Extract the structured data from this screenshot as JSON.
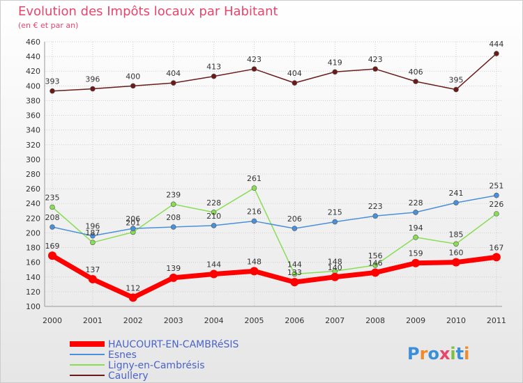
{
  "chart_data": {
    "type": "line",
    "title": "Evolution des Impôts locaux par Habitant",
    "subtitle": "(en € et par an)",
    "xlabel": "",
    "ylabel": "",
    "ylim": [
      100,
      460
    ],
    "ytick_step": 20,
    "grid": true,
    "categories": [
      "2000",
      "2001",
      "2002",
      "2003",
      "2004",
      "2005",
      "2006",
      "2007",
      "2008",
      "2009",
      "2010",
      "2011"
    ],
    "series": [
      {
        "name": "HAUCOURT-EN-CAMBRéSIS",
        "color": "#ff0000",
        "values": [
          169,
          137,
          112,
          139,
          144,
          148,
          133,
          140,
          146,
          159,
          160,
          167
        ]
      },
      {
        "name": "Esnes",
        "color": "#4a90d9",
        "values": [
          208,
          196,
          206,
          208,
          210,
          216,
          206,
          215,
          223,
          228,
          241,
          251
        ]
      },
      {
        "name": "Ligny-en-Cambrésis",
        "color": "#88dd55",
        "values": [
          235,
          187,
          201,
          239,
          228,
          261,
          144,
          148,
          156,
          194,
          185,
          226
        ]
      },
      {
        "name": "Caullery",
        "color": "#6b1a1a",
        "values": [
          393,
          396,
          400,
          404,
          413,
          423,
          404,
          419,
          423,
          406,
          395,
          444
        ]
      }
    ],
    "legend_position": "bottom-left"
  },
  "logo": {
    "text": "Proxiti"
  }
}
